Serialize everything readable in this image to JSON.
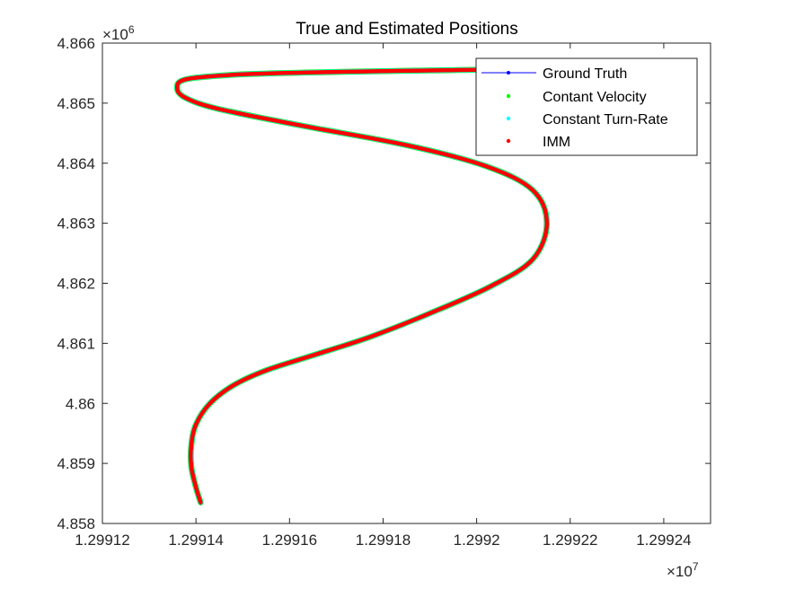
{
  "chart_data": {
    "type": "scatter",
    "title": "True and Estimated Positions",
    "xlabel": "",
    "ylabel": "",
    "x_multiplier": "10^7",
    "y_multiplier": "10^6",
    "xlim": [
      1.29912,
      1.29925
    ],
    "ylim": [
      4.858,
      4.866
    ],
    "x_ticks": [
      1.29912,
      1.29914,
      1.29916,
      1.29918,
      1.2992,
      1.29922,
      1.29924
    ],
    "x_tick_labels": [
      "1.29912",
      "1.29914",
      "1.29916",
      "1.29918",
      "1.2992",
      "1.29922",
      "1.29924"
    ],
    "y_ticks": [
      4.858,
      4.859,
      4.86,
      4.861,
      4.862,
      4.863,
      4.864,
      4.865,
      4.866
    ],
    "y_tick_labels": [
      "4.858",
      "4.859",
      "4.86",
      "4.861",
      "4.862",
      "4.863",
      "4.864",
      "4.865",
      "4.866"
    ],
    "grid": false,
    "legend_position": "top-right",
    "path_x": [
      1.299141,
      1.29914,
      1.299139,
      1.299139,
      1.29914,
      1.299143,
      1.299148,
      1.299155,
      1.299165,
      1.299177,
      1.29919,
      1.299203,
      1.299212,
      1.299215,
      1.299212,
      1.299202,
      1.299185,
      1.299163,
      1.299145,
      1.299138,
      1.299136,
      1.299138,
      1.29915,
      1.29917,
      1.299195,
      1.299218
    ],
    "path_y": [
      4.85835,
      4.8586,
      4.85895,
      4.8593,
      4.85965,
      4.86,
      4.8603,
      4.86055,
      4.8608,
      4.8611,
      4.8615,
      4.86195,
      4.8624,
      4.863,
      4.86355,
      4.86395,
      4.8643,
      4.86462,
      4.8649,
      4.86508,
      4.86524,
      4.8654,
      4.86548,
      4.86552,
      4.86555,
      4.86557
    ],
    "series": [
      {
        "name": "Ground Truth",
        "color": "#0000ff",
        "marker": "line-dot"
      },
      {
        "name": "Contant Velocity",
        "color": "#00ff00",
        "marker": "dot"
      },
      {
        "name": "Constant Turn-Rate",
        "color": "#00ffff",
        "marker": "dot"
      },
      {
        "name": "IMM",
        "color": "#ff0000",
        "marker": "dot"
      }
    ]
  }
}
